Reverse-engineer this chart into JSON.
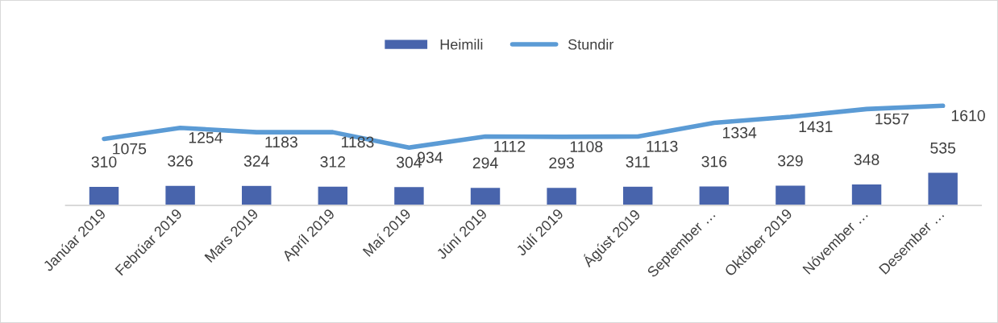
{
  "chart_data": {
    "type": "bar",
    "categories": [
      "Janúar 2019",
      "Febrúar 2019",
      "Mars 2019",
      "Apríl 2019",
      "Maí 2019",
      "Júní 2019",
      "Júlí 2019",
      "Ágúst 2019",
      "September …",
      "Október 2019",
      "Nóvember …",
      "Desember …"
    ],
    "series": [
      {
        "name": "Heimili",
        "color": "#4864ac",
        "values": [
          310,
          326,
          324,
          312,
          304,
          294,
          293,
          311,
          316,
          329,
          348,
          535
        ]
      },
      {
        "name": "Stundir",
        "type": "line",
        "color": "#5b9bd5",
        "values": [
          1075,
          1254,
          1183,
          1183,
          934,
          1112,
          1108,
          1113,
          1334,
          1431,
          1557,
          1610
        ]
      }
    ],
    "data_labels": true,
    "legend": "top",
    "grid": false,
    "marker": "none",
    "line_style": "solid"
  }
}
